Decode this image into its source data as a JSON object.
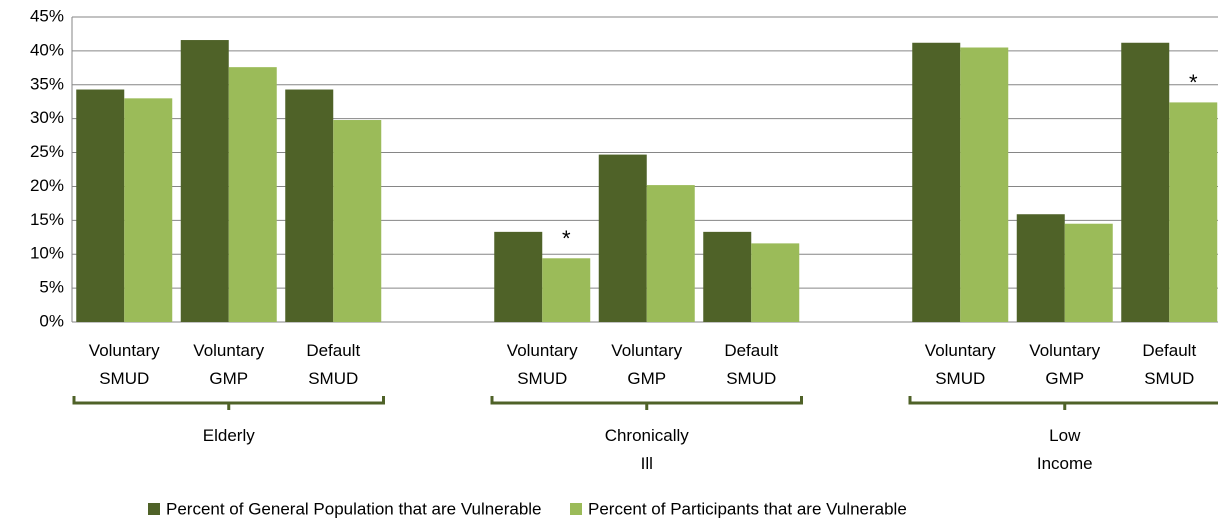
{
  "chart_data": {
    "type": "bar",
    "groups": [
      {
        "label": "Elderly",
        "categories": [
          "Voluntary SMUD",
          "Voluntary GMP",
          "Default SMUD"
        ]
      },
      {
        "label": "Chronically Ill",
        "categories": [
          "Voluntary SMUD",
          "Voluntary GMP",
          "Default SMUD"
        ]
      },
      {
        "label": "Low Income",
        "categories": [
          "Voluntary SMUD",
          "Voluntary GMP",
          "Default SMUD"
        ]
      }
    ],
    "series": [
      {
        "name": "Percent of General Population that are Vulnerable",
        "color": "#4f6228",
        "values": [
          34.3,
          41.6,
          34.3,
          13.3,
          24.7,
          13.3,
          41.2,
          15.9,
          41.2
        ]
      },
      {
        "name": "Percent of Participants that are Vulnerable",
        "color": "#9bbb59",
        "values": [
          33,
          37.6,
          29.8,
          9.4,
          20.2,
          11.6,
          40.5,
          14.5,
          32.4
        ]
      }
    ],
    "annotations": [
      {
        "text": "*",
        "series": 1,
        "index": 3
      },
      {
        "text": "*",
        "series": 1,
        "index": 8
      }
    ],
    "ylim": [
      0,
      45
    ],
    "yticks": [
      {
        "value": 0,
        "label": "0%"
      },
      {
        "value": 5,
        "label": "5%"
      },
      {
        "value": 10,
        "label": "10%"
      },
      {
        "value": 15,
        "label": "15%"
      },
      {
        "value": 20,
        "label": "20%"
      },
      {
        "value": 25,
        "label": "25%"
      },
      {
        "value": 30,
        "label": "30%"
      },
      {
        "value": 35,
        "label": "35%"
      },
      {
        "value": 40,
        "label": "40%"
      },
      {
        "value": 45,
        "label": "45%"
      }
    ],
    "grid": true
  }
}
